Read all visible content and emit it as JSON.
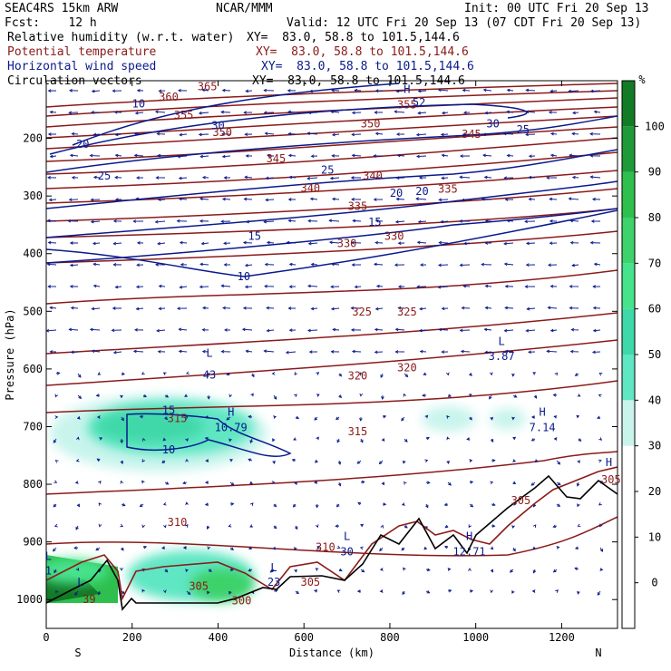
{
  "header": {
    "model": "SEAC4RS 15km ARW",
    "center": "NCAR/MMM",
    "init": "Init: 00 UTC Fri 20 Sep 13",
    "fcst": "Fcst:    12 h",
    "valid": "Valid: 12 UTC Fri 20 Sep 13 (07 CDT Fri 20 Sep 13)"
  },
  "legend_lines": [
    {
      "label": "Relative humidity (w.r.t. water)",
      "xy": "XY=  83.0, 58.8 to 101.5,144.6",
      "color": "#000000"
    },
    {
      "label": "Potential temperature",
      "xy": "XY=  83.0, 58.8 to 101.5,144.6",
      "color": "#8b1a1a"
    },
    {
      "label": "Horizontal wind speed",
      "xy": "XY=  83.0, 58.8 to 101.5,144.6",
      "color": "#0a1a8c"
    },
    {
      "label": "Circulation vectors",
      "xy": "XY=  83.0, 58.8 to 101.5,144.6",
      "color": "#000000"
    }
  ],
  "chart_data": {
    "type": "contour-cross-section",
    "xlabel": "Distance (km)",
    "ylabel": "Pressure (hPa)",
    "xlim": [
      0,
      1330
    ],
    "ylim": [
      1050,
      100
    ],
    "x_ticks": [
      0,
      200,
      400,
      600,
      800,
      1000,
      1200
    ],
    "y_ticks": [
      200,
      300,
      400,
      500,
      600,
      700,
      800,
      900,
      1000
    ],
    "x_end_labels": {
      "left": "S",
      "right": "N"
    },
    "colorbar": {
      "unit": "%",
      "ticks": [
        0,
        10,
        20,
        30,
        40,
        50,
        60,
        70,
        80,
        90,
        100
      ],
      "bands": [
        {
          "from": -10,
          "to": 30,
          "color": "#ffffff"
        },
        {
          "from": 30,
          "to": 40,
          "color": "#c8f4ec"
        },
        {
          "from": 40,
          "to": 50,
          "color": "#5fe6c3"
        },
        {
          "from": 50,
          "to": 60,
          "color": "#3fd8a8"
        },
        {
          "from": 60,
          "to": 70,
          "color": "#46e28c"
        },
        {
          "from": 70,
          "to": 80,
          "color": "#3dd26a"
        },
        {
          "from": 80,
          "to": 90,
          "color": "#2ebf4e"
        },
        {
          "from": 90,
          "to": 100,
          "color": "#1f9a38"
        },
        {
          "from": 100,
          "to": 110,
          "color": "#137a26"
        }
      ]
    },
    "theta_labels": [
      {
        "text": "365",
        "x": 375,
        "p": 110
      },
      {
        "text": "360",
        "x": 285,
        "p": 128
      },
      {
        "text": "355",
        "x": 320,
        "p": 160
      },
      {
        "text": "355",
        "x": 840,
        "p": 142
      },
      {
        "text": "350",
        "x": 410,
        "p": 190
      },
      {
        "text": "350",
        "x": 755,
        "p": 175
      },
      {
        "text": "345",
        "x": 535,
        "p": 235
      },
      {
        "text": "345",
        "x": 990,
        "p": 193
      },
      {
        "text": "340",
        "x": 615,
        "p": 286
      },
      {
        "text": "340",
        "x": 760,
        "p": 265
      },
      {
        "text": "335",
        "x": 725,
        "p": 318
      },
      {
        "text": "335",
        "x": 935,
        "p": 288
      },
      {
        "text": "330",
        "x": 700,
        "p": 382
      },
      {
        "text": "330",
        "x": 810,
        "p": 370
      },
      {
        "text": "325",
        "x": 735,
        "p": 501
      },
      {
        "text": "325",
        "x": 840,
        "p": 501
      },
      {
        "text": "320",
        "x": 725,
        "p": 612
      },
      {
        "text": "320",
        "x": 840,
        "p": 598
      },
      {
        "text": "315",
        "x": 305,
        "p": 686
      },
      {
        "text": "315",
        "x": 725,
        "p": 709
      },
      {
        "text": "310",
        "x": 305,
        "p": 866
      },
      {
        "text": "310",
        "x": 650,
        "p": 909
      },
      {
        "text": "305",
        "x": 355,
        "p": 977
      },
      {
        "text": "305",
        "x": 615,
        "p": 970
      },
      {
        "text": "305",
        "x": 1105,
        "p": 828
      },
      {
        "text": "300",
        "x": 455,
        "p": 1002
      },
      {
        "text": "305",
        "x": 1315,
        "p": 792
      }
    ],
    "wind_labels": [
      {
        "text": "10",
        "x": 215,
        "p": 140
      },
      {
        "text": "30",
        "x": 400,
        "p": 178
      },
      {
        "text": "20",
        "x": 85,
        "p": 210
      },
      {
        "text": "25",
        "x": 135,
        "p": 265
      },
      {
        "text": "25",
        "x": 655,
        "p": 255
      },
      {
        "text": "20",
        "x": 815,
        "p": 295
      },
      {
        "text": "20",
        "x": 875,
        "p": 292
      },
      {
        "text": "15",
        "x": 765,
        "p": 345
      },
      {
        "text": "15",
        "x": 485,
        "p": 370
      },
      {
        "text": "10",
        "x": 460,
        "p": 440
      },
      {
        "text": "30",
        "x": 1040,
        "p": 175
      },
      {
        "text": "25",
        "x": 1110,
        "p": 185
      },
      {
        "text": "52",
        "x": 868,
        "p": 138
      },
      {
        "text": "15",
        "x": 285,
        "p": 672
      },
      {
        "text": "10",
        "x": 285,
        "p": 740
      }
    ],
    "rh_labels": [
      {
        "text": "39",
        "x": 100,
        "p": 1000
      }
    ],
    "extrema": [
      {
        "text": "H",
        "x": 840,
        "p": 115
      },
      {
        "text": "L",
        "x": 380,
        "p": 573
      },
      {
        "text": "43",
        "x": 380,
        "p": 610
      },
      {
        "text": "H",
        "x": 430,
        "p": 675
      },
      {
        "text": "10.79",
        "x": 430,
        "p": 702
      },
      {
        "text": "L",
        "x": 1060,
        "p": 552
      },
      {
        "text": "3.87",
        "x": 1060,
        "p": 578
      },
      {
        "text": "H",
        "x": 1155,
        "p": 675
      },
      {
        "text": "7.14",
        "x": 1155,
        "p": 702
      },
      {
        "text": "H",
        "x": 1310,
        "p": 762
      },
      {
        "text": "L",
        "x": 700,
        "p": 890
      },
      {
        "text": "30",
        "x": 700,
        "p": 917
      },
      {
        "text": "L",
        "x": 530,
        "p": 945
      },
      {
        "text": "23",
        "x": 530,
        "p": 970
      },
      {
        "text": "H",
        "x": 985,
        "p": 890
      },
      {
        "text": "12.71",
        "x": 985,
        "p": 917
      },
      {
        "text": "L",
        "x": 80,
        "p": 970
      },
      {
        "text": "L",
        "x": 5,
        "p": 925
      },
      {
        "text": "1",
        "x": 5,
        "p": 950
      }
    ]
  }
}
